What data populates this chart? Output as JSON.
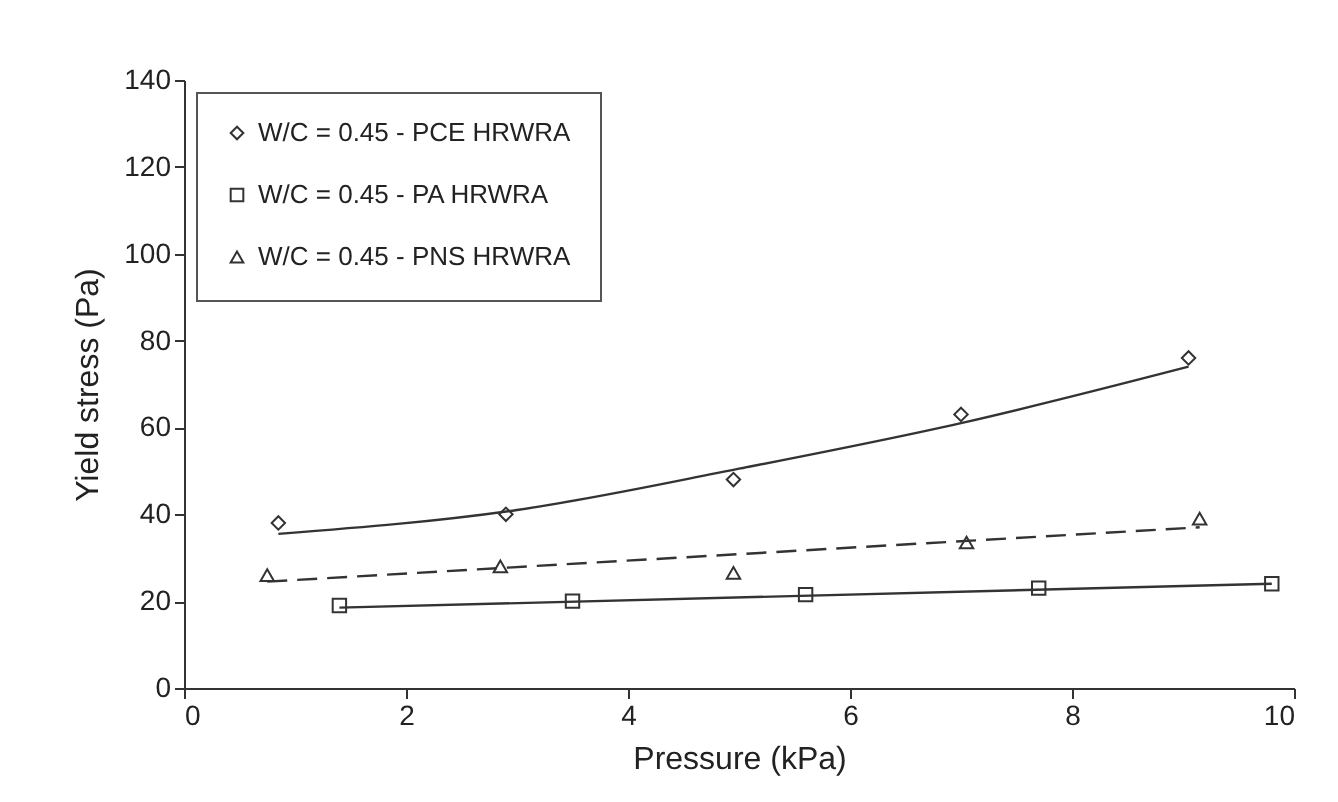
{
  "chart_data": {
    "type": "scatter",
    "xlabel": "Pressure (kPa)",
    "ylabel": "Yield stress (Pa)",
    "xlim": [
      0,
      10
    ],
    "xticks": [
      0,
      2,
      4,
      6,
      8,
      10
    ],
    "ylim": [
      0,
      140
    ],
    "yticks": [
      0,
      20,
      40,
      60,
      80,
      100,
      120,
      140
    ],
    "grid": false,
    "legend": "top left",
    "series": [
      {
        "name": "W/C = 0.45 - PCE HRWRA",
        "type": "scatter",
        "marker": "diamond",
        "color": "#333333",
        "x": [
          0.85,
          2.9,
          4.95,
          7.0,
          9.05
        ],
        "values": [
          38,
          40,
          48,
          63,
          76
        ]
      },
      {
        "name": "W/C = 0.45 - PA HRWRA",
        "type": "scatter",
        "marker": "square",
        "color": "#333333",
        "x": [
          1.4,
          3.5,
          5.6,
          7.7,
          9.8
        ],
        "values": [
          19,
          20,
          21.5,
          23,
          24
        ]
      },
      {
        "name": "W/C = 0.45 - PNS HRWRA",
        "type": "scatter",
        "marker": "triangle",
        "color": "#333333",
        "x": [
          0.75,
          2.85,
          4.95,
          7.05,
          9.15
        ],
        "values": [
          26,
          28,
          26.5,
          33.5,
          39
        ]
      },
      {
        "type": "line",
        "line_style": "solid",
        "color": "#333333",
        "x": [
          0.85,
          3,
          5,
          7,
          9.05
        ],
        "values": [
          35.5,
          41,
          50.5,
          61,
          74
        ]
      },
      {
        "type": "line",
        "line_style": "solid",
        "color": "#333333",
        "x": [
          1.4,
          9.8
        ],
        "values": [
          18.5,
          24
        ]
      },
      {
        "type": "line",
        "line_style": "dashed",
        "color": "#333333",
        "x": [
          0.75,
          9.15
        ],
        "values": [
          24.5,
          37
        ]
      }
    ]
  }
}
